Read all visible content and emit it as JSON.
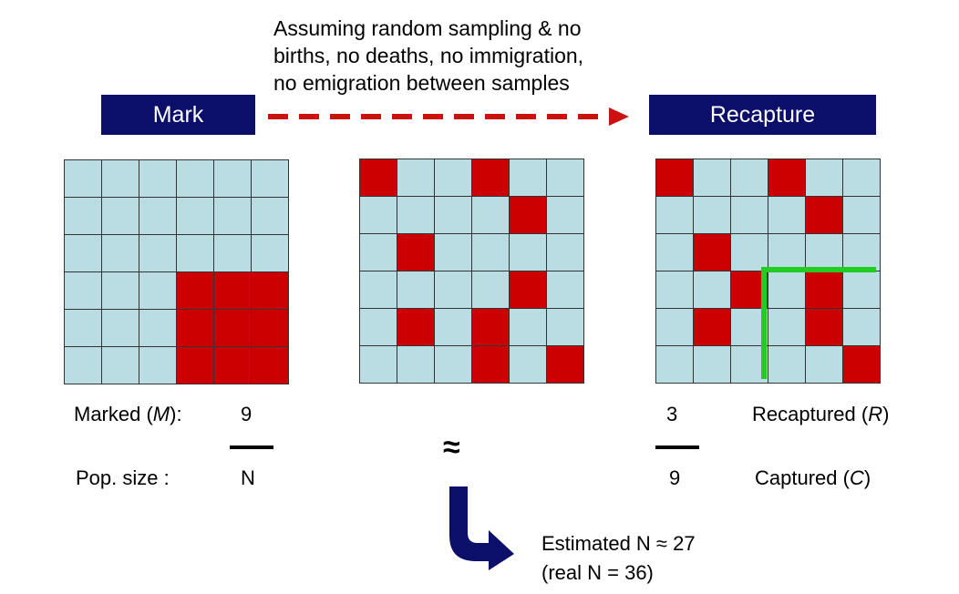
{
  "assumption_text": [
    "Assuming random sampling & no",
    "births, no deaths, no immigration,",
    "no emigration between samples"
  ],
  "mark_label": "Mark",
  "recapture_label": "Recapture",
  "colors": {
    "navy": "#0c0f6a",
    "marked_red": "#cc0000",
    "unmarked_blue": "#b9dde2",
    "highlight_green": "#22cc22",
    "arrow_red": "#cc1111"
  },
  "grids": {
    "mark": [
      [
        3,
        3
      ],
      [
        3,
        4
      ],
      [
        3,
        5
      ],
      [
        4,
        3
      ],
      [
        4,
        4
      ],
      [
        4,
        5
      ],
      [
        5,
        3
      ],
      [
        5,
        4
      ],
      [
        5,
        5
      ]
    ],
    "population": [
      [
        0,
        0
      ],
      [
        0,
        3
      ],
      [
        1,
        4
      ],
      [
        2,
        1
      ],
      [
        3,
        4
      ],
      [
        4,
        1
      ],
      [
        4,
        3
      ],
      [
        5,
        3
      ],
      [
        5,
        5
      ]
    ],
    "recapture": [
      [
        0,
        0
      ],
      [
        0,
        3
      ],
      [
        1,
        4
      ],
      [
        2,
        1
      ],
      [
        3,
        2
      ],
      [
        3,
        4
      ],
      [
        4,
        1
      ],
      [
        4,
        4
      ],
      [
        5,
        5
      ]
    ]
  },
  "left_fraction": {
    "marked_label": "Marked (",
    "marked_var": "M",
    "marked_suffix": "):",
    "numerator": "9",
    "pop_label": "Pop. size :",
    "denominator": "N"
  },
  "approx_symbol": "≈",
  "right_fraction": {
    "numerator": "3",
    "denominator": "9",
    "recaptured_label": "Recaptured (",
    "recaptured_var": "R",
    "recaptured_suffix": ")",
    "captured_label": "Captured (",
    "captured_var": "C",
    "captured_suffix": ")"
  },
  "estimate": {
    "line1": "Estimated N ≈ 27",
    "line2": "(real N = 36)"
  }
}
